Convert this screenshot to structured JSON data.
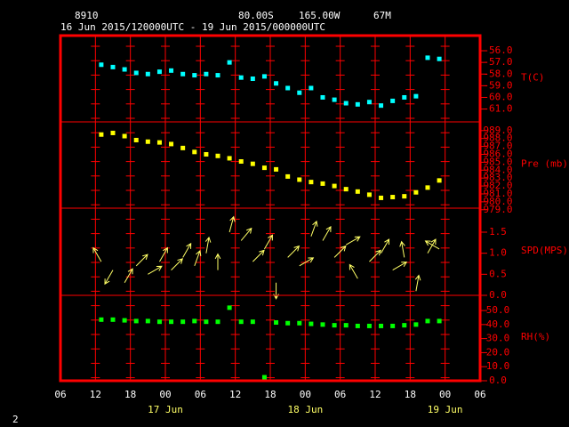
{
  "header": {
    "station": "8910",
    "latitude": "80.00S",
    "longitude": "165.00W",
    "elevation": "67M",
    "period": "16 Jun 2015/120000UTC - 19 Jun 2015/000000UTC"
  },
  "page_number": "2",
  "xlim": [
    "2015-06-16T06:00Z",
    "2015-06-19T06:00Z"
  ],
  "xticks": [
    {
      "value": "2015-06-16T06:00Z",
      "label": "06"
    },
    {
      "value": "2015-06-16T12:00Z",
      "label": "12"
    },
    {
      "value": "2015-06-16T18:00Z",
      "label": "18"
    },
    {
      "value": "2015-06-17T00:00Z",
      "label": "00"
    },
    {
      "value": "2015-06-17T06:00Z",
      "label": "06"
    },
    {
      "value": "2015-06-17T12:00Z",
      "label": "12"
    },
    {
      "value": "2015-06-17T18:00Z",
      "label": "18"
    },
    {
      "value": "2015-06-18T00:00Z",
      "label": "00"
    },
    {
      "value": "2015-06-18T06:00Z",
      "label": "06"
    },
    {
      "value": "2015-06-18T12:00Z",
      "label": "12"
    },
    {
      "value": "2015-06-18T18:00Z",
      "label": "18"
    },
    {
      "value": "2015-06-19T00:00Z",
      "label": "00"
    },
    {
      "value": "2015-06-19T06:00Z",
      "label": "06"
    }
  ],
  "date_labels": [
    {
      "value": "2015-06-17T00:00Z",
      "label": "17 Jun"
    },
    {
      "value": "2015-06-18T00:00Z",
      "label": "18 Jun"
    },
    {
      "value": "2015-06-19T00:00Z",
      "label": "19 Jun"
    }
  ],
  "x": [
    "2015-06-16T13:00Z",
    "2015-06-16T15:00Z",
    "2015-06-16T17:00Z",
    "2015-06-16T19:00Z",
    "2015-06-16T21:00Z",
    "2015-06-16T23:00Z",
    "2015-06-17T01:00Z",
    "2015-06-17T03:00Z",
    "2015-06-17T05:00Z",
    "2015-06-17T07:00Z",
    "2015-06-17T09:00Z",
    "2015-06-17T11:00Z",
    "2015-06-17T13:00Z",
    "2015-06-17T15:00Z",
    "2015-06-17T17:00Z",
    "2015-06-17T19:00Z",
    "2015-06-17T21:00Z",
    "2015-06-17T23:00Z",
    "2015-06-18T01:00Z",
    "2015-06-18T03:00Z",
    "2015-06-18T05:00Z",
    "2015-06-18T07:00Z",
    "2015-06-18T09:00Z",
    "2015-06-18T11:00Z",
    "2015-06-18T13:00Z",
    "2015-06-18T15:00Z",
    "2015-06-18T17:00Z",
    "2015-06-18T19:00Z",
    "2015-06-18T21:00Z",
    "2015-06-18T23:00Z"
  ],
  "chart_data": [
    {
      "type": "scatter",
      "axis_label": "T(C)",
      "color": "#00ffff",
      "ylim": [
        -62.1,
        -54.7
      ],
      "yticks": [
        {
          "value": -56,
          "label": "-56.0"
        },
        {
          "value": -57,
          "label": "-57.0"
        },
        {
          "value": -58,
          "label": "-58.0"
        },
        {
          "value": -59,
          "label": "-59.0"
        },
        {
          "value": -60,
          "label": "-60.0"
        },
        {
          "value": -61,
          "label": "-61.0"
        }
      ],
      "values": [
        -57.2,
        -57.4,
        -57.6,
        -57.9,
        -58.0,
        -57.8,
        -57.7,
        -58.0,
        -58.1,
        -58.0,
        -58.1,
        -57.0,
        -58.3,
        -58.4,
        -58.2,
        -58.8,
        -59.2,
        -59.6,
        -59.2,
        -60.0,
        -60.2,
        -60.5,
        -60.6,
        -60.4,
        -60.7,
        -60.3,
        -60.0,
        -59.9,
        -56.6,
        -56.7
      ]
    },
    {
      "type": "scatter",
      "axis_label": "Pre (mb)",
      "color": "#ffff00",
      "ylim": [
        979.2,
        990.1
      ],
      "yticks": [
        {
          "value": 989,
          "label": "989.0"
        },
        {
          "value": 988,
          "label": "988.0"
        },
        {
          "value": 987,
          "label": "987.0"
        },
        {
          "value": 986,
          "label": "986.0"
        },
        {
          "value": 985,
          "label": "985.0"
        },
        {
          "value": 984,
          "label": "984.0"
        },
        {
          "value": 983,
          "label": "983.0"
        },
        {
          "value": 982,
          "label": "982.0"
        },
        {
          "value": 981,
          "label": "981.0"
        },
        {
          "value": 980,
          "label": "980.0"
        },
        {
          "value": 979,
          "label": "979.0"
        }
      ],
      "values": [
        988.5,
        988.7,
        988.3,
        987.8,
        987.6,
        987.5,
        987.3,
        986.8,
        986.3,
        986.0,
        985.8,
        985.5,
        985.1,
        984.8,
        984.3,
        984.1,
        983.2,
        982.8,
        982.5,
        982.3,
        982.0,
        981.6,
        981.3,
        980.9,
        980.5,
        980.6,
        980.7,
        981.2,
        981.8,
        982.7
      ]
    },
    {
      "type": "wind",
      "axis_label": "SPD(MPS)",
      "color": "#ffff66",
      "ylim": [
        0,
        2.07
      ],
      "yticks": [
        1.5,
        {
          "value": 1,
          "label": "1.0"
        },
        0.5,
        {
          "value": 0,
          "label": "0.0"
        }
      ],
      "values": [
        0.8,
        0.6,
        0.3,
        0.7,
        0.5,
        0.8,
        0.6,
        0.9,
        0.7,
        1.0,
        0.6,
        1.5,
        1.3,
        0.8,
        1.1,
        0.3,
        0.9,
        0.7,
        1.4,
        1.3,
        0.9,
        1.2,
        0.4,
        0.8,
        1.0,
        0.6,
        0.9,
        0.1,
        1.0,
        1.1
      ],
      "direction": [
        120,
        240,
        60,
        45,
        30,
        60,
        45,
        60,
        70,
        80,
        90,
        75,
        50,
        45,
        60,
        270,
        45,
        30,
        70,
        60,
        45,
        30,
        120,
        45,
        60,
        30,
        100,
        80,
        60,
        150
      ]
    },
    {
      "type": "scatter",
      "axis_label": "RH(%)",
      "color": "#00ff00",
      "ylim": [
        0,
        60.8
      ],
      "yticks": [
        {
          "value": 50,
          "label": "50.0"
        },
        {
          "value": 40,
          "label": "40.0"
        },
        {
          "value": 30,
          "label": "30.0"
        },
        {
          "value": 20,
          "label": "20.0"
        },
        {
          "value": 10,
          "label": "10.0"
        },
        {
          "value": 0,
          "label": "0.0"
        }
      ],
      "values": [
        43.5,
        43.5,
        43.0,
        42.5,
        42.5,
        42.0,
        42.0,
        42.0,
        42.5,
        42.0,
        42.0,
        52.0,
        42.0,
        42.0,
        2.5,
        41.5,
        41.0,
        41.0,
        40.5,
        40.0,
        39.5,
        39.5,
        39.0,
        39.0,
        39.0,
        39.0,
        39.5,
        40.0,
        42.5,
        42.5
      ]
    }
  ]
}
